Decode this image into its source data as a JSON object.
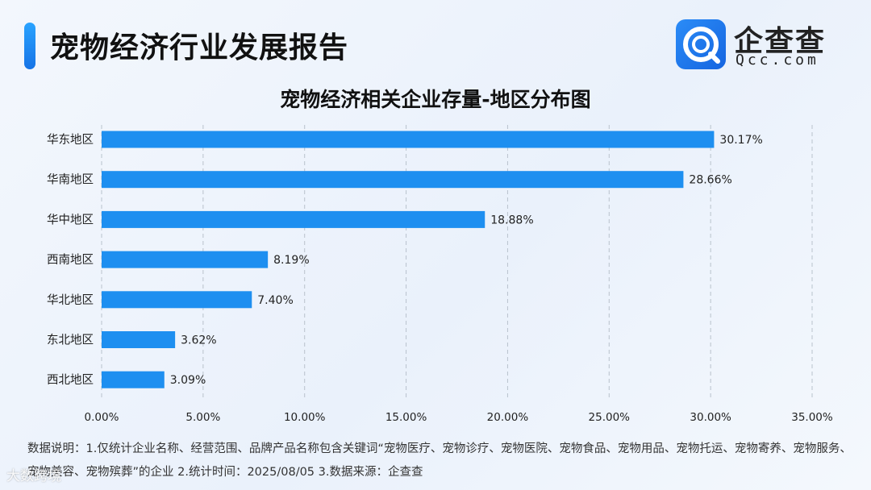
{
  "header": {
    "title": "宠物经济行业发展报告"
  },
  "brand": {
    "name": "企查查",
    "domain": "Qcc.com"
  },
  "chart_data": {
    "type": "bar",
    "orientation": "horizontal",
    "title": "宠物经济相关企业存量-地区分布图",
    "categories": [
      "华东地区",
      "华南地区",
      "华中地区",
      "西南地区",
      "华北地区",
      "东北地区",
      "西北地区"
    ],
    "values": [
      30.17,
      28.66,
      18.88,
      8.19,
      7.4,
      3.62,
      3.09
    ],
    "value_labels": [
      "30.17%",
      "28.66%",
      "18.88%",
      "8.19%",
      "7.40%",
      "3.62%",
      "3.09%"
    ],
    "xlim": [
      0,
      35
    ],
    "xticks": [
      0,
      5,
      10,
      15,
      20,
      25,
      30,
      35
    ],
    "xtick_labels": [
      "0.00%",
      "5.00%",
      "10.00%",
      "15.00%",
      "20.00%",
      "25.00%",
      "30.00%",
      "35.00%"
    ],
    "xlabel": "",
    "ylabel": "",
    "grid": "vertical dashed",
    "bar_color": "#1e8ff0"
  },
  "footnote": {
    "text": "数据说明：1.仅统计企业名称、经营范围、品牌产品名称包含关键词“宠物医疗、宠物诊疗、宠物医院、宠物食品、宠物用品、宠物托运、宠物寄养、宠物服务、宠物美容、宠物殡葬”的企业  2.统计时间：2025/08/05  3.数据来源：企查查"
  },
  "watermark": {
    "text": "大数跨境"
  }
}
